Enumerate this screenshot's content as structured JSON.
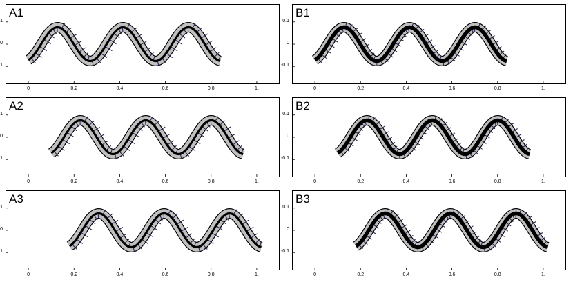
{
  "panels": [
    {
      "label": "A1",
      "variant": "A",
      "x_start": 0.0,
      "x_end": 0.84,
      "head": "right"
    },
    {
      "label": "B1",
      "variant": "B",
      "x_start": 0.0,
      "x_end": 0.84,
      "head": "right"
    },
    {
      "label": "A2",
      "variant": "A",
      "x_start": 0.1,
      "x_end": 0.94,
      "head": "right"
    },
    {
      "label": "B2",
      "variant": "B",
      "x_start": 0.1,
      "x_end": 0.94,
      "head": "right"
    },
    {
      "label": "A3",
      "variant": "A",
      "x_start": 0.18,
      "x_end": 1.02,
      "head": "right"
    },
    {
      "label": "B3",
      "variant": "B",
      "x_start": 0.18,
      "x_end": 1.02,
      "head": "right"
    }
  ],
  "axes": {
    "y_ticks": [
      "0.1",
      "0",
      "-0.1"
    ],
    "y_values": [
      0.1,
      0,
      -0.1
    ],
    "x_ticks": [
      "0",
      "0.2",
      "0.4",
      "0.6",
      "0.8",
      "1."
    ],
    "x_values": [
      0,
      0.2,
      0.4,
      0.6,
      0.8,
      1.0
    ],
    "xlim": [
      -0.1,
      1.1
    ],
    "ylim": [
      -0.18,
      0.18
    ]
  },
  "colors": {
    "body_fill": "#c0c0c0",
    "centerline": "#000000",
    "force_vectors": "#262650"
  }
}
